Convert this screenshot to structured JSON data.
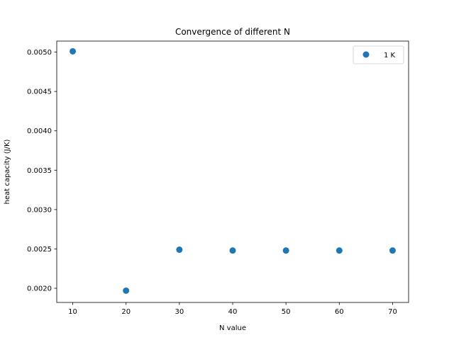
{
  "chart_data": {
    "type": "scatter",
    "title": "Convergence of different N",
    "xlabel": "N value",
    "ylabel": "heat capacity (J/K)",
    "xlim": [
      7,
      73
    ],
    "ylim": [
      0.00182,
      0.00514
    ],
    "x_ticks": [
      10,
      20,
      30,
      40,
      50,
      60,
      70
    ],
    "x_tick_labels": [
      "10",
      "20",
      "30",
      "40",
      "50",
      "60",
      "70"
    ],
    "y_ticks": [
      0.002,
      0.0025,
      0.003,
      0.0035,
      0.004,
      0.0045,
      0.005
    ],
    "y_tick_labels": [
      "0.0020",
      "0.0025",
      "0.0030",
      "0.0035",
      "0.0040",
      "0.0045",
      "0.0050"
    ],
    "grid": false,
    "legend_position": "top-right",
    "series": [
      {
        "name": "1 K",
        "color": "#1f77b4",
        "x": [
          10,
          20,
          30,
          40,
          50,
          60,
          70
        ],
        "y": [
          0.00501,
          0.00197,
          0.00249,
          0.00248,
          0.00248,
          0.00248,
          0.00248
        ]
      }
    ]
  }
}
